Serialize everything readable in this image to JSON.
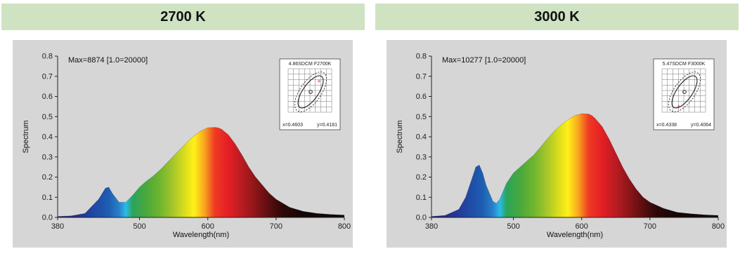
{
  "chart_data": [
    {
      "type": "area",
      "title": "2700 K",
      "annotation": "Max=8874  [1.0=20000]",
      "xlabel": "Wavelength(nm)",
      "ylabel": "Spectrum",
      "xlim": [
        380,
        800
      ],
      "ylim": [
        0,
        0.8
      ],
      "xticks": [
        "380",
        "500",
        "600",
        "700",
        "800"
      ],
      "yticks": [
        "0.0",
        "0.1",
        "0.2",
        "0.3",
        "0.4",
        "0.5",
        "0.6",
        "0.7",
        "0.8"
      ],
      "x": [
        380,
        400,
        420,
        440,
        450,
        455,
        460,
        470,
        480,
        490,
        500,
        510,
        520,
        530,
        540,
        550,
        560,
        570,
        580,
        590,
        600,
        610,
        615,
        620,
        630,
        640,
        650,
        660,
        670,
        680,
        690,
        700,
        720,
        740,
        760,
        780,
        800
      ],
      "y": [
        0.005,
        0.008,
        0.02,
        0.09,
        0.145,
        0.15,
        0.12,
        0.075,
        0.075,
        0.11,
        0.15,
        0.18,
        0.205,
        0.235,
        0.27,
        0.305,
        0.34,
        0.375,
        0.405,
        0.43,
        0.445,
        0.447,
        0.445,
        0.438,
        0.41,
        0.365,
        0.31,
        0.25,
        0.2,
        0.16,
        0.12,
        0.09,
        0.05,
        0.03,
        0.02,
        0.015,
        0.012
      ],
      "inset": {
        "title": "4.86SDCM F2700K",
        "x_label": "x=0.4603",
        "y_label": "y=0.4181"
      }
    },
    {
      "type": "area",
      "title": "3000 K",
      "annotation": "Max=10277  [1.0=20000]",
      "xlabel": "Wavelength(nm)",
      "ylabel": "Spectrum",
      "xlim": [
        380,
        800
      ],
      "ylim": [
        0,
        0.8
      ],
      "xticks": [
        "380",
        "500",
        "600",
        "700",
        "800"
      ],
      "yticks": [
        "0.0",
        "0.1",
        "0.2",
        "0.3",
        "0.4",
        "0.5",
        "0.6",
        "0.7",
        "0.8"
      ],
      "x": [
        380,
        400,
        420,
        430,
        440,
        445,
        450,
        455,
        460,
        470,
        475,
        480,
        490,
        500,
        510,
        520,
        530,
        540,
        550,
        560,
        570,
        580,
        590,
        600,
        610,
        615,
        620,
        630,
        640,
        650,
        660,
        670,
        680,
        690,
        700,
        720,
        740,
        760,
        780,
        800
      ],
      "y": [
        0.005,
        0.01,
        0.04,
        0.1,
        0.2,
        0.25,
        0.26,
        0.22,
        0.16,
        0.08,
        0.07,
        0.09,
        0.17,
        0.22,
        0.25,
        0.28,
        0.31,
        0.35,
        0.39,
        0.43,
        0.46,
        0.485,
        0.505,
        0.515,
        0.513,
        0.505,
        0.49,
        0.45,
        0.39,
        0.32,
        0.25,
        0.19,
        0.14,
        0.1,
        0.075,
        0.045,
        0.025,
        0.018,
        0.013,
        0.01
      ],
      "inset": {
        "title": "5.47SDCM F3000K",
        "x_label": "x=0.4338",
        "y_label": "y=0.4064"
      }
    }
  ],
  "colors": {
    "header_bg": "#cfe3c3",
    "plot_bg": "#d6d6d6"
  }
}
